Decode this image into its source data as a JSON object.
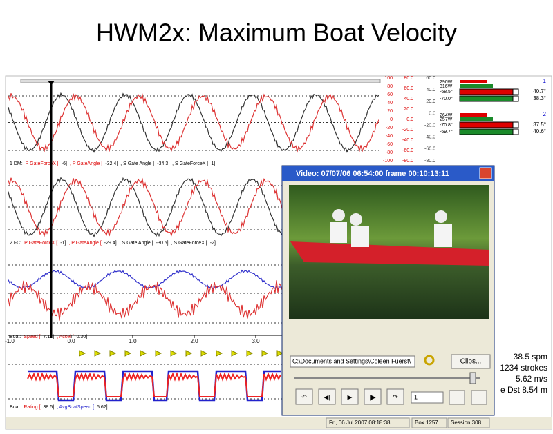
{
  "title": "HWM2x: Maximum Boat Velocity",
  "panels": [
    {
      "label": "1 DM:",
      "fields": [
        "P GateForceX [",
        "-6]",
        ", P GateAngle [",
        "-32.4]",
        ", S Gate Angle [",
        "-34.3]",
        ", S GateForceX [",
        "1]"
      ]
    },
    {
      "label": "2 FC:",
      "fields": [
        "P GateForceX [",
        "-1]",
        ", P GateAngle [",
        "-29.4]",
        ", S Gate Angle [",
        "-30.5]",
        ", S GateForceX [",
        "-2]"
      ]
    },
    {
      "label": "Boat:",
      "fields": [
        "Speed [",
        "7.13]",
        ", Accel [",
        "0.30]"
      ]
    }
  ],
  "x_axis": [
    "-1.0",
    "0.0",
    "1.0",
    "2.0",
    "3.0"
  ],
  "scales": [
    [
      "100",
      "80",
      "60",
      "40",
      "20",
      "0",
      "-20",
      "-40",
      "-60",
      "-80",
      "-100"
    ],
    [
      "80.0",
      "60.0",
      "40.0",
      "20.0",
      "0.0",
      "-20.0",
      "-40.0",
      "-60.0",
      "-80.0"
    ],
    [
      "60.0",
      "40.0",
      "20.0",
      "0.0",
      "-20.0",
      "-40.0",
      "-60.0",
      "-80.0"
    ]
  ],
  "crews": [
    {
      "number": "1",
      "power": [
        "290W",
        "316W"
      ],
      "angles_left": [
        "-68.5°",
        "-70.0°"
      ],
      "angles_right": [
        "40.7°",
        "38.3°"
      ]
    },
    {
      "number": "2",
      "power": [
        "264W",
        "257W"
      ],
      "angles_left": [
        "-70.8°",
        "-69.7°"
      ],
      "angles_right": [
        "37.5°",
        "40.6°"
      ]
    }
  ],
  "video": {
    "title": "Video: 07/07/06 06:54:00 frame  00:10:13:11",
    "path": "C:\\Documents and Settings\\Coleen Fuerst\\",
    "clips": "Clips...",
    "speed": "1"
  },
  "stats": [
    "38.5 spm",
    "1234 strokes",
    "5.62 m/s",
    "e Dst 8.54 m"
  ],
  "rating": {
    "label": "Boat:",
    "fields": [
      "Rating [",
      "38.5]",
      ", AvgBoatSpeed [",
      "5.62]"
    ]
  },
  "status": [
    "Fri, 06 Jul 2007 08:18:38",
    "Box 1257",
    "Session 308"
  ]
}
